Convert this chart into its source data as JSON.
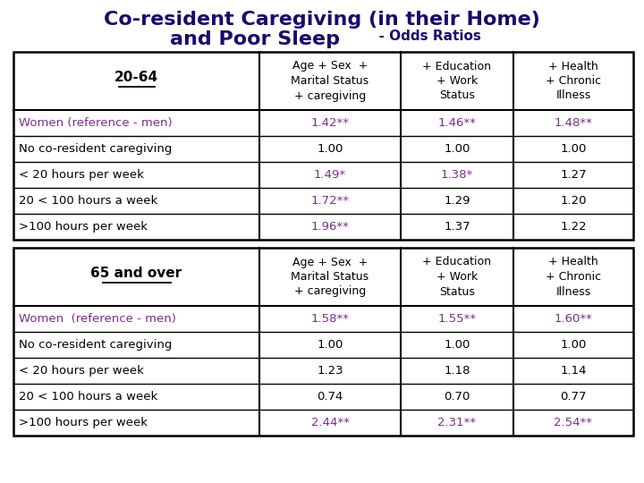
{
  "title_line1": "Co-resident Caregiving (in their Home)",
  "title_line2": "and Poor Sleep",
  "title_suffix": "  - Odds Ratios",
  "title_color": "#1a0a6b",
  "title_fontsize": 16,
  "subtitle_fontsize": 11,
  "col_headers": [
    "Age + Sex  +\nMarital Status\n+ caregiving",
    "+ Education\n+ Work\nStatus",
    "+ Health\n+ Chronic\nIllness"
  ],
  "section1_label": "20-64",
  "section2_label": "65 and over",
  "row_labels_1": [
    "Women (reference - men)",
    "No co-resident caregiving",
    "< 20 hours per week",
    "20 < 100 hours a week",
    ">100 hours per week"
  ],
  "row_labels_2": [
    "Women  (reference - men)",
    "No co-resident caregiving",
    "< 20 hours per week",
    "20 < 100 hours a week",
    ">100 hours per week"
  ],
  "data_1": [
    [
      "1.42**",
      "1.46**",
      "1.48**"
    ],
    [
      "1.00",
      "1.00",
      "1.00"
    ],
    [
      "1.49*",
      "1.38*",
      "1.27"
    ],
    [
      "1.72**",
      "1.29",
      "1.20"
    ],
    [
      "1.96**",
      "1.37",
      "1.22"
    ]
  ],
  "data_2": [
    [
      "1.58**",
      "1.55**",
      "1.60**"
    ],
    [
      "1.00",
      "1.00",
      "1.00"
    ],
    [
      "1.23",
      "1.18",
      "1.14"
    ],
    [
      "0.74",
      "0.70",
      "0.77"
    ],
    [
      "2.44**",
      "2.31**",
      "2.54**"
    ]
  ],
  "purple_data_1": [
    [
      true,
      true,
      true
    ],
    [
      false,
      false,
      false
    ],
    [
      true,
      true,
      false
    ],
    [
      true,
      false,
      false
    ],
    [
      true,
      false,
      false
    ]
  ],
  "purple_data_2": [
    [
      true,
      true,
      true
    ],
    [
      false,
      false,
      false
    ],
    [
      false,
      false,
      false
    ],
    [
      false,
      false,
      false
    ],
    [
      true,
      true,
      true
    ]
  ],
  "purple_color": "#7b2d8b",
  "black_color": "#000000",
  "dark_navy": "#1a0a6b",
  "bg_color": "#ffffff"
}
